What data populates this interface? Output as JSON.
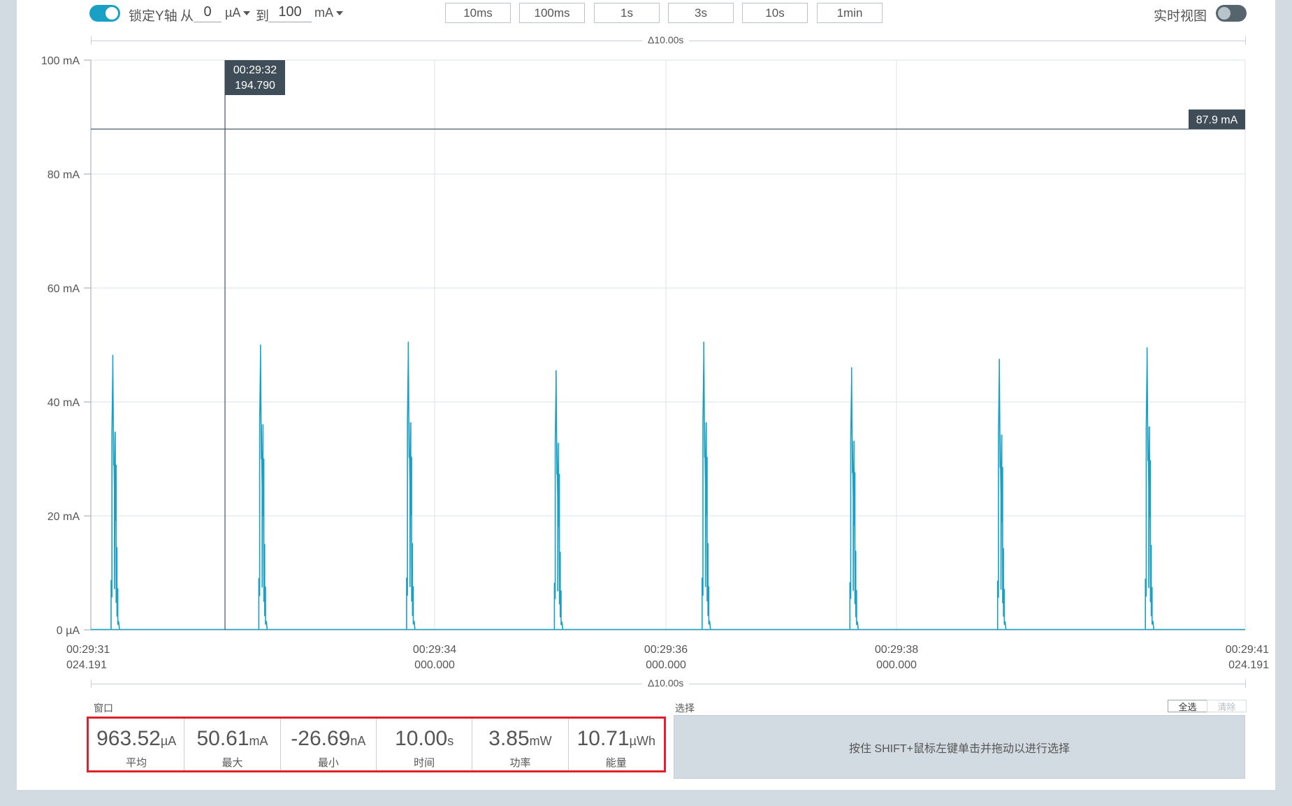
{
  "toolbar": {
    "lock_y_label": "锁定Y轴",
    "lock_y_on": true,
    "from_label": "从",
    "from_value": "0",
    "from_unit": "µA",
    "to_label": "到",
    "to_value": "100",
    "to_unit": "mA",
    "zoom_buttons": [
      "10ms",
      "100ms",
      "1s",
      "3s",
      "10s",
      "1min"
    ],
    "realtime_label": "实时视图",
    "realtime_on": false
  },
  "window_span": "Δ10.00s",
  "chart": {
    "y_ticks": [
      "100 mA",
      "80 mA",
      "60 mA",
      "40 mA",
      "20 mA",
      "0 µA"
    ],
    "x_ticks": [
      {
        "time": "00:29:31",
        "sub": "024.191"
      },
      {
        "time": "00:29:34",
        "sub": "000.000"
      },
      {
        "time": "00:29:36",
        "sub": "000.000"
      },
      {
        "time": "00:29:38",
        "sub": "000.000"
      },
      {
        "time": "00:29:41",
        "sub": "024.191"
      }
    ],
    "cursor_tooltip": {
      "time": "00:29:32",
      "value": "194.790"
    },
    "trigger_level_label": "87.9 mA",
    "trigger_level_mA": 87.9,
    "line_color": "#1aa0c4"
  },
  "chart_data": {
    "type": "line",
    "ylabel": "",
    "ylim_mA": [
      0,
      100
    ],
    "x_range_s": [
      0,
      10
    ],
    "grid": true,
    "series": [
      {
        "pulses": [
          {
            "t_s": 0.19,
            "peak_mA": 48.2
          },
          {
            "t_s": 1.47,
            "peak_mA": 50.0
          },
          {
            "t_s": 2.75,
            "peak_mA": 50.5
          },
          {
            "t_s": 4.03,
            "peak_mA": 45.5
          },
          {
            "t_s": 5.31,
            "peak_mA": 50.5
          },
          {
            "t_s": 6.59,
            "peak_mA": 46.0
          },
          {
            "t_s": 7.87,
            "peak_mA": 47.5
          },
          {
            "t_s": 9.15,
            "peak_mA": 49.5
          }
        ],
        "baseline_mA": 0
      }
    ]
  },
  "window_section": {
    "title": "窗口",
    "stats": [
      {
        "value": "963.52",
        "unit": "µA",
        "caption": "平均"
      },
      {
        "value": "50.61",
        "unit": "mA",
        "caption": "最大"
      },
      {
        "value": "-26.69",
        "unit": "nA",
        "caption": "最小"
      },
      {
        "value": "10.00",
        "unit": "s",
        "caption": "时间"
      },
      {
        "value": "3.85",
        "unit": "mW",
        "caption": "功率"
      },
      {
        "value": "10.71",
        "unit": "µWh",
        "caption": "能量"
      }
    ]
  },
  "selection_section": {
    "title": "选择",
    "select_all": "全选",
    "clear": "清除",
    "hint": "按住 SHIFT+鼠标左键单击并拖动以进行选择"
  }
}
